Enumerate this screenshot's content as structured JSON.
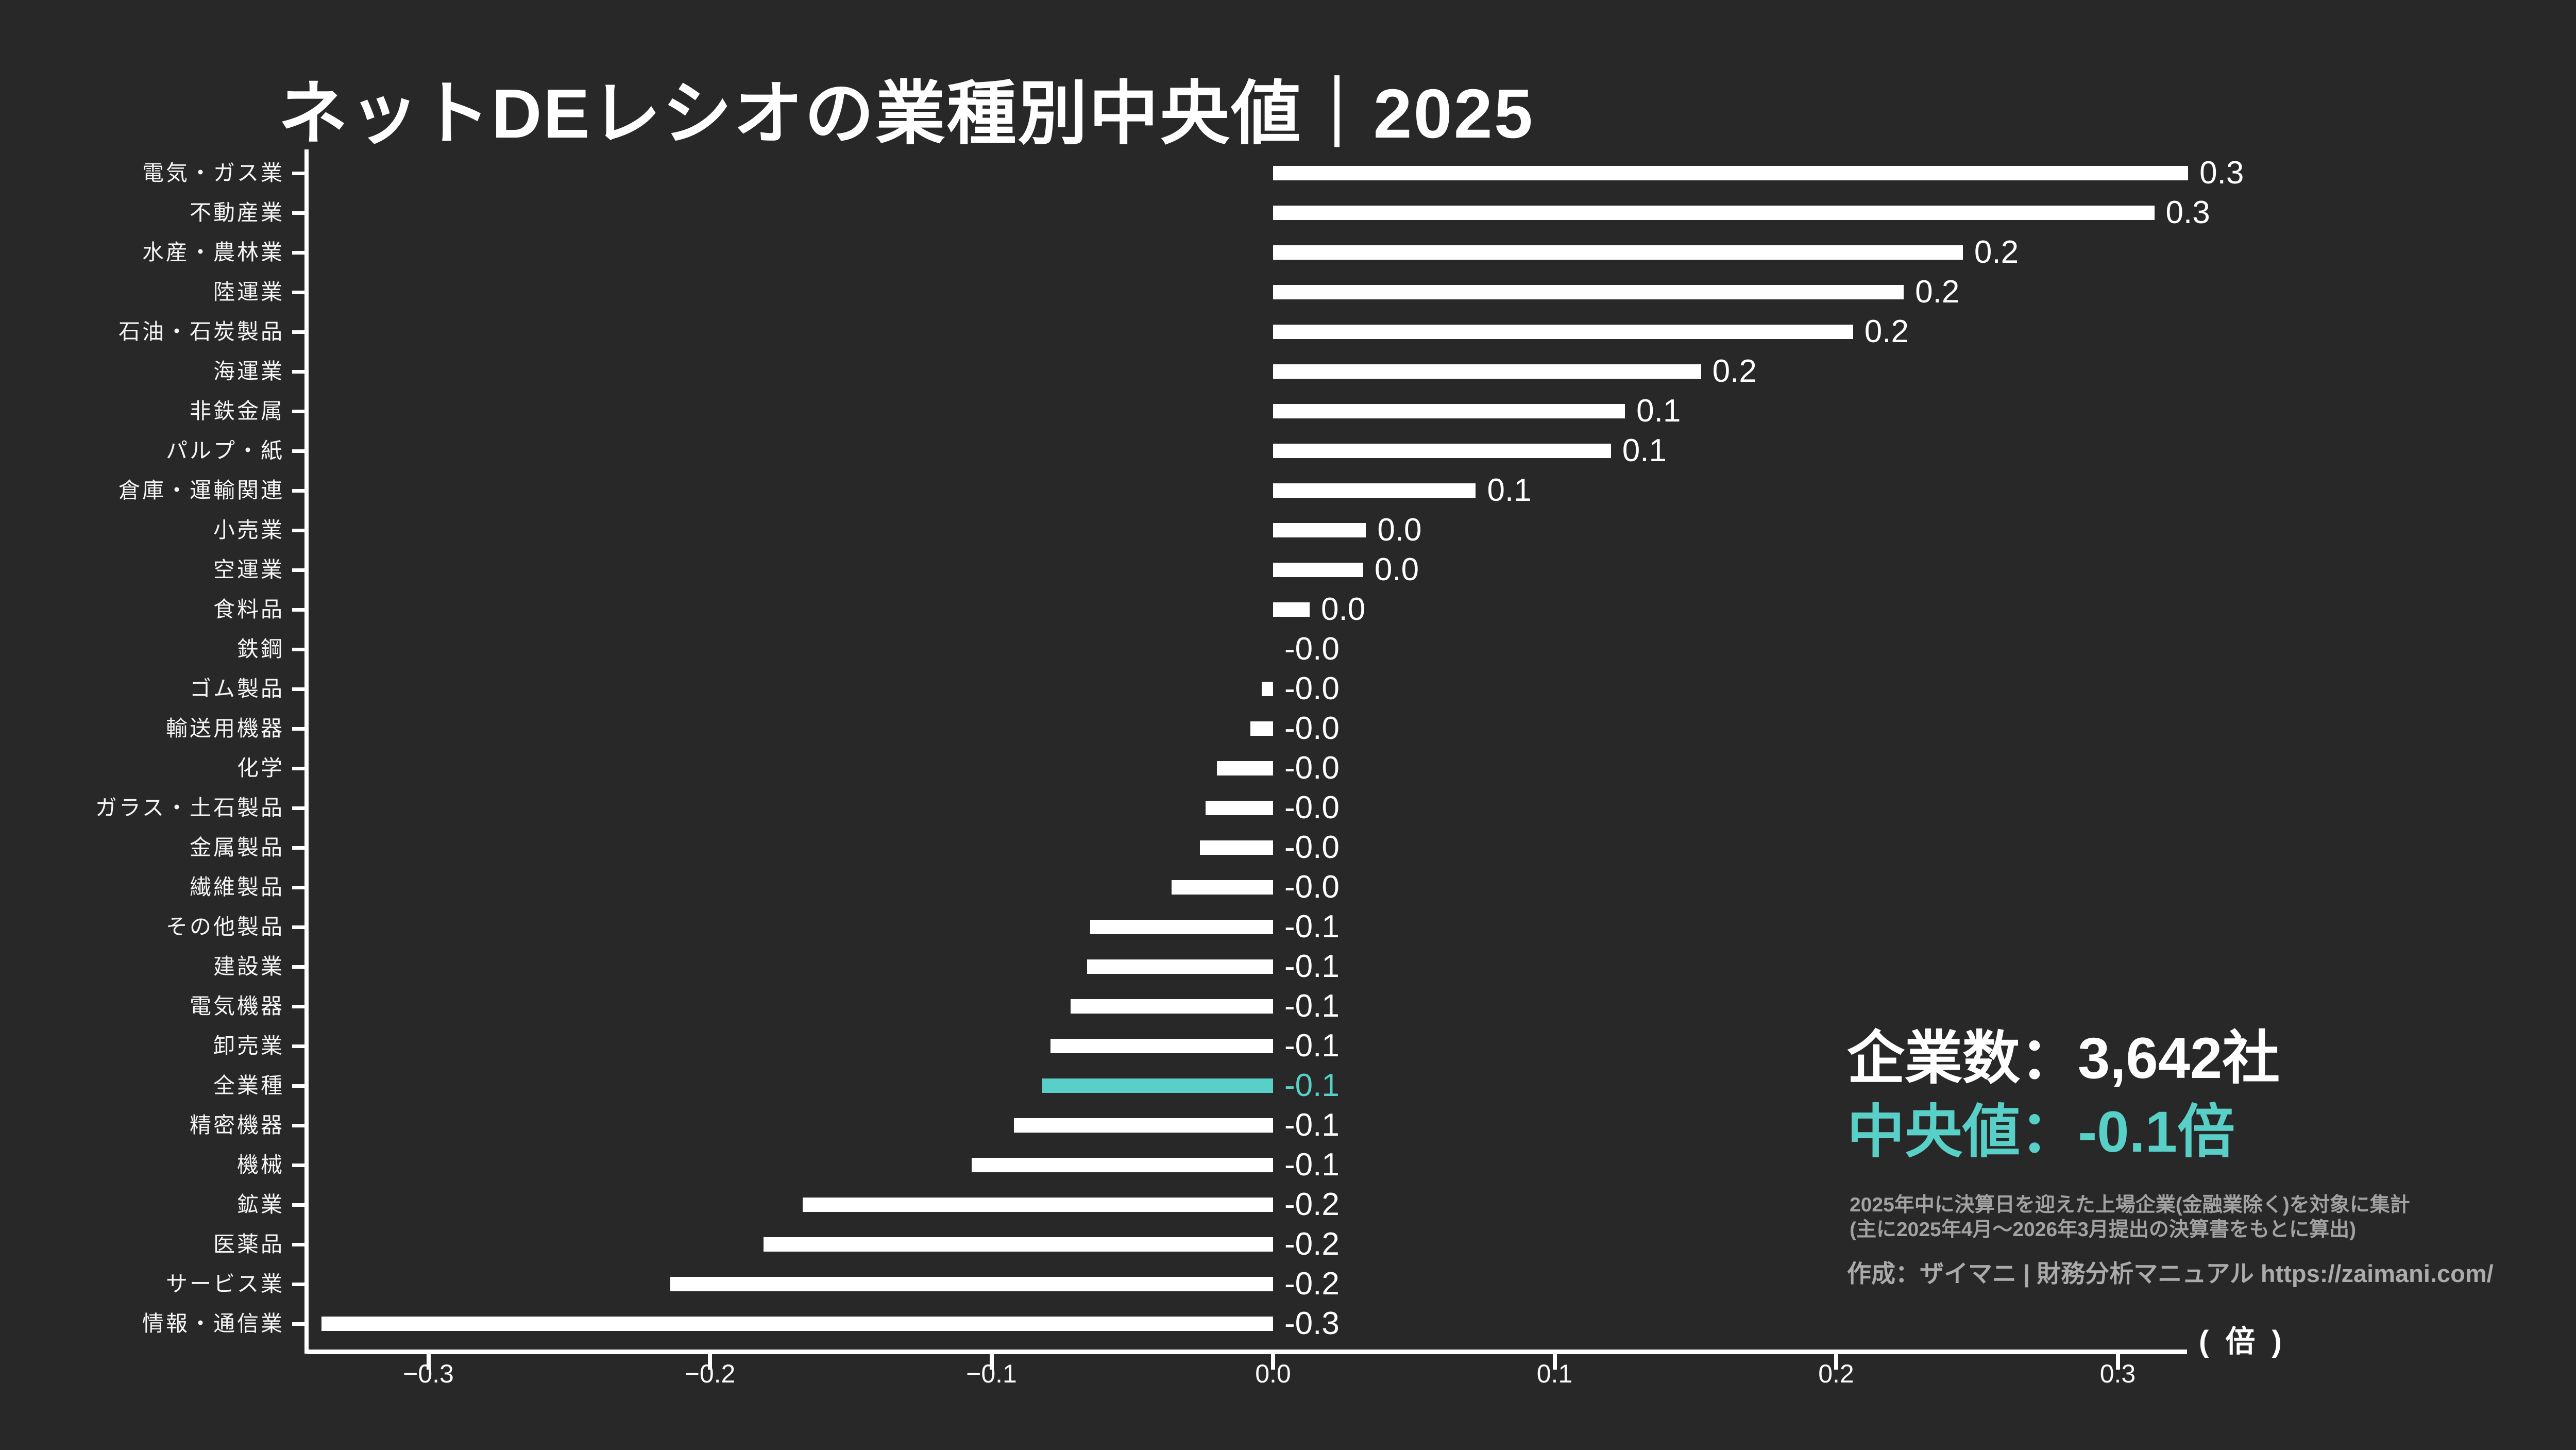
{
  "title": "ネットDEレシオの業種別中央値｜2025",
  "stats": {
    "companies": "企業数：3,642社",
    "median": "中央値：-0.1倍"
  },
  "footnotes": {
    "line1": "2025年中に決算日を迎えた上場企業(金融業除く)を対象に集計",
    "line2": "(主に2025年4月～2026年3月提出の決算書をもとに算出)"
  },
  "credit": "作成：ザイマニ | 財務分析マニュアル https://zaimani.com/",
  "unit_label": "( 倍 )",
  "colors": {
    "background": "#282828",
    "bar": "#ffffff",
    "highlight": "#58d0c7",
    "muted_text": "#a2a2a2"
  },
  "chart_data": {
    "type": "bar",
    "orientation": "horizontal",
    "title": "ネットDEレシオの業種別中央値｜2025",
    "xlabel": "( 倍 )",
    "ylabel": "",
    "xlim": [
      -0.345,
      0.325
    ],
    "grid": false,
    "legend": "none",
    "x_ticks": [
      -0.3,
      -0.2,
      -0.1,
      0.0,
      0.1,
      0.2,
      0.3
    ],
    "x_tick_labels": [
      "−0.3",
      "−0.2",
      "−0.1",
      "0.0",
      "0.1",
      "0.2",
      "0.3"
    ],
    "categories": [
      "電気・ガス業",
      "不動産業",
      "水産・農林業",
      "陸運業",
      "石油・石炭製品",
      "海運業",
      "非鉄金属",
      "パルプ・紙",
      "倉庫・運輸関連",
      "小売業",
      "空運業",
      "食料品",
      "鉄鋼",
      "ゴム製品",
      "輸送用機器",
      "化学",
      "ガラス・土石製品",
      "金属製品",
      "繊維製品",
      "その他製品",
      "建設業",
      "電気機器",
      "卸売業",
      "全業種",
      "精密機器",
      "機械",
      "鉱業",
      "医薬品",
      "サービス業",
      "情報・通信業"
    ],
    "values": [
      0.325,
      0.313,
      0.245,
      0.224,
      0.206,
      0.152,
      0.125,
      0.12,
      0.072,
      0.033,
      0.032,
      0.013,
      -0.001,
      -0.004,
      -0.008,
      -0.02,
      -0.024,
      -0.026,
      -0.036,
      -0.065,
      -0.066,
      -0.072,
      -0.079,
      -0.082,
      -0.092,
      -0.107,
      -0.167,
      -0.181,
      -0.214,
      -0.338
    ],
    "value_labels": [
      "0.3",
      "0.3",
      "0.2",
      "0.2",
      "0.2",
      "0.2",
      "0.1",
      "0.1",
      "0.1",
      "0.0",
      "0.0",
      "0.0",
      "-0.0",
      "-0.0",
      "-0.0",
      "-0.0",
      "-0.0",
      "-0.0",
      "-0.0",
      "-0.1",
      "-0.1",
      "-0.1",
      "-0.1",
      "-0.1",
      "-0.1",
      "-0.1",
      "-0.2",
      "-0.2",
      "-0.2",
      "-0.3"
    ],
    "highlight_category": "全業種",
    "highlight_index": 23
  }
}
